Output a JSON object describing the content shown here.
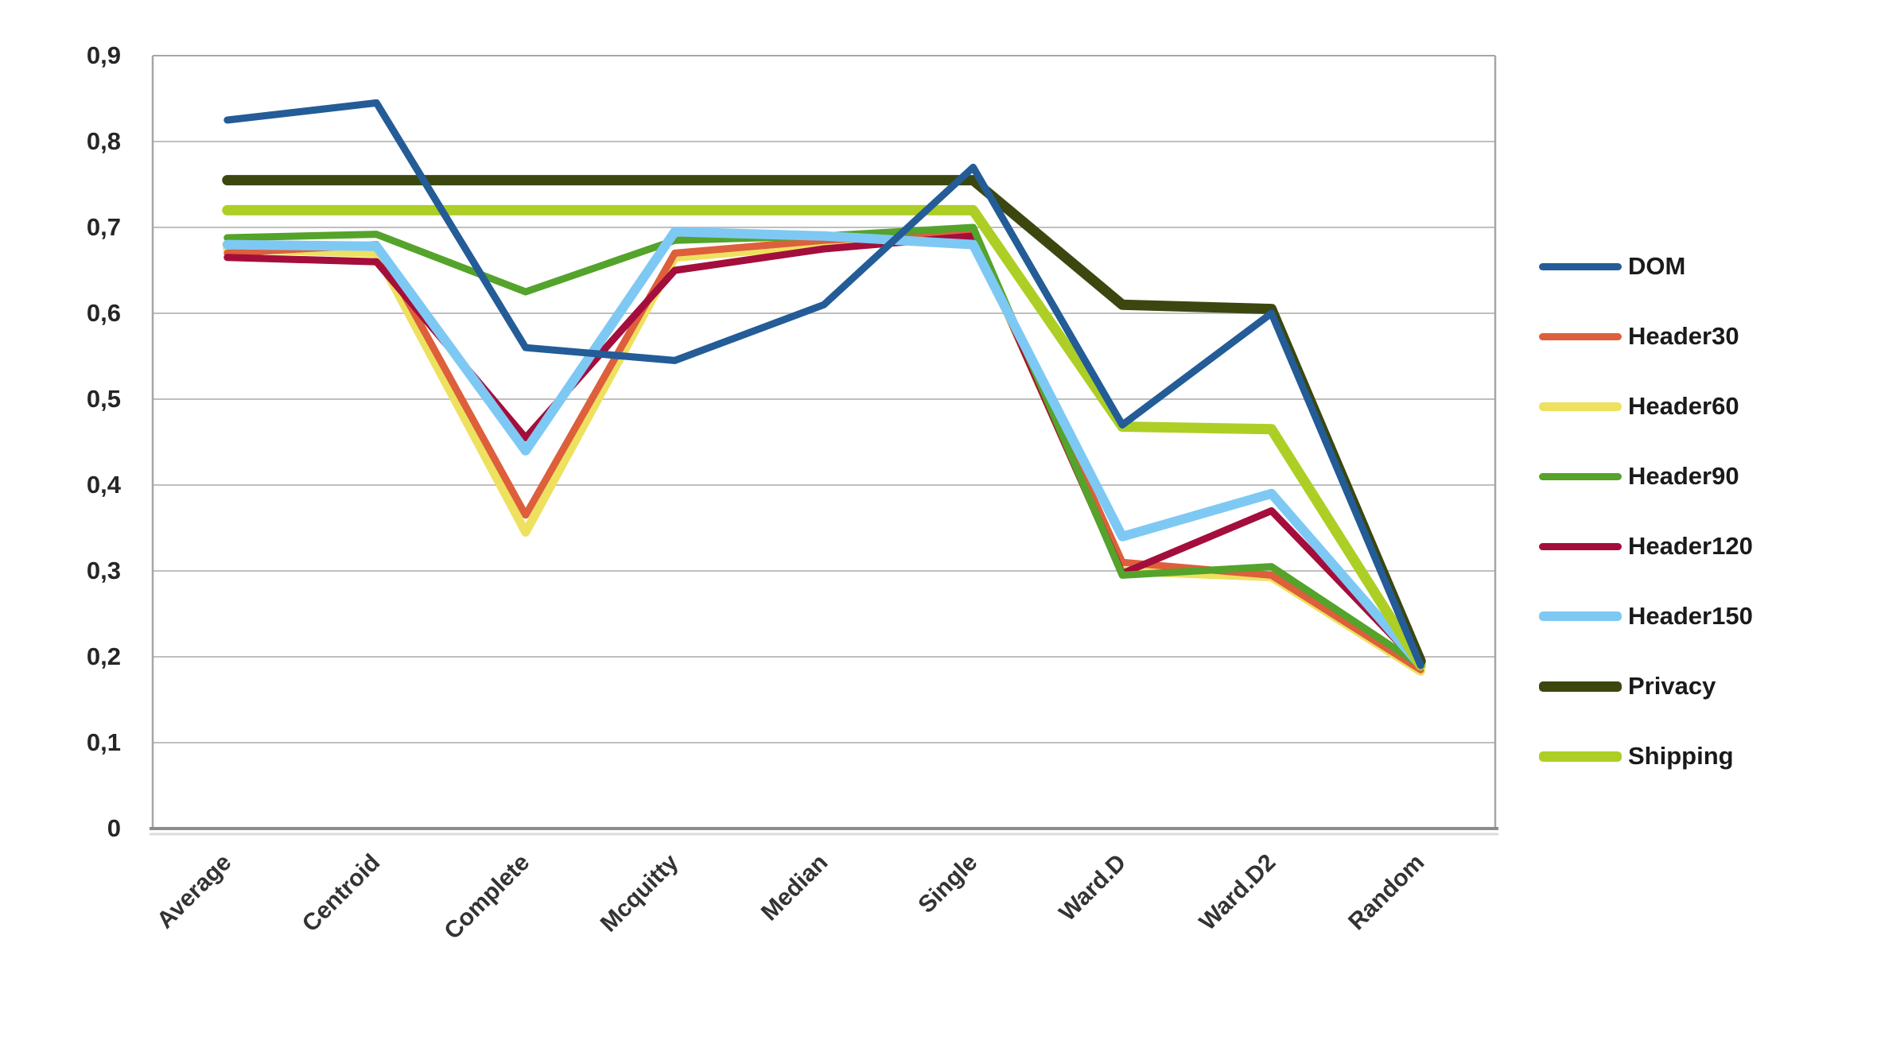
{
  "chart_data": {
    "type": "line",
    "title": "",
    "xlabel": "",
    "ylabel": "",
    "categories": [
      "Average",
      "Centroid",
      "Complete",
      "Mcquitty",
      "Median",
      "Single",
      "Ward.D",
      "Ward.D2",
      "Random"
    ],
    "series": [
      {
        "name": "DOM",
        "color": "#235C97",
        "width": 9,
        "values": [
          0.825,
          0.845,
          0.56,
          0.545,
          0.61,
          0.77,
          0.47,
          0.6,
          0.19
        ]
      },
      {
        "name": "Header30",
        "color": "#DD5F3B",
        "width": 9,
        "values": [
          0.67,
          0.68,
          0.365,
          0.67,
          0.685,
          0.695,
          0.31,
          0.295,
          0.185
        ]
      },
      {
        "name": "Header60",
        "color": "#EEE15F",
        "width": 11,
        "values": [
          0.675,
          0.67,
          0.345,
          0.665,
          0.68,
          0.69,
          0.3,
          0.293,
          0.183
        ]
      },
      {
        "name": "Header90",
        "color": "#54A32B",
        "width": 9,
        "values": [
          0.688,
          0.692,
          0.625,
          0.685,
          0.69,
          0.7,
          0.295,
          0.305,
          0.19
        ]
      },
      {
        "name": "Header120",
        "color": "#A40E3C",
        "width": 9,
        "values": [
          0.665,
          0.66,
          0.455,
          0.65,
          0.675,
          0.69,
          0.297,
          0.37,
          0.19
        ]
      },
      {
        "name": "Header150",
        "color": "#7EC9F4",
        "width": 12,
        "values": [
          0.68,
          0.678,
          0.44,
          0.695,
          0.69,
          0.68,
          0.34,
          0.39,
          0.19
        ]
      },
      {
        "name": "Privacy",
        "color": "#3B470F",
        "width": 13,
        "values": [
          0.755,
          0.755,
          0.755,
          0.755,
          0.755,
          0.755,
          0.61,
          0.605,
          0.195
        ]
      },
      {
        "name": "Shipping",
        "color": "#ADCF25",
        "width": 13,
        "values": [
          0.72,
          0.72,
          0.72,
          0.72,
          0.72,
          0.72,
          0.468,
          0.465,
          0.19
        ]
      }
    ],
    "ylim": [
      0,
      0.9
    ],
    "ytick_step": 0.1,
    "y_tick_labels": [
      "0",
      "0,1",
      "0,2",
      "0,3",
      "0,4",
      "0,5",
      "0,6",
      "0,7",
      "0,8",
      "0,9"
    ],
    "grid": true,
    "gridline_color": "#BFBFBF",
    "plot_border_color": "#A6A6A6",
    "axis_line_color": "#8C8C8C",
    "legend_position": "right",
    "x_labels_rotation": -45
  }
}
